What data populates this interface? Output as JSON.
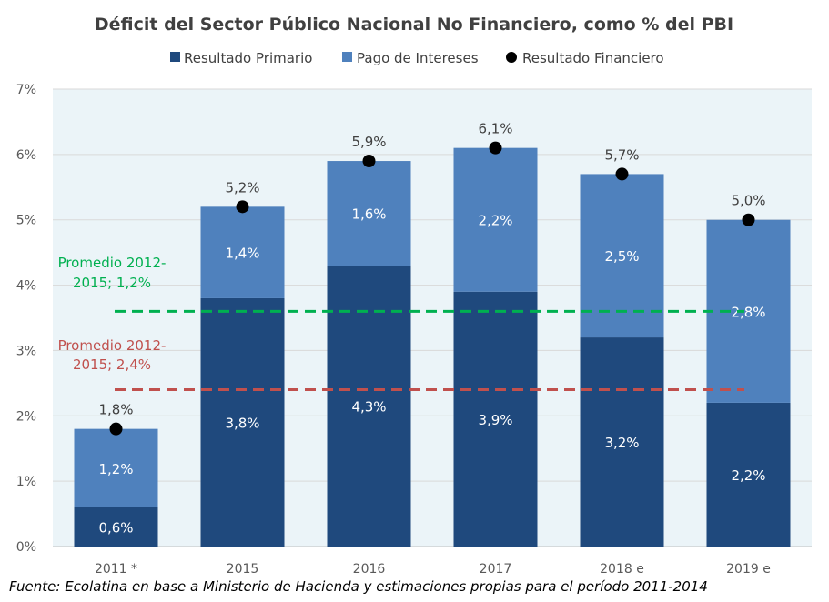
{
  "chart_data": {
    "type": "bar",
    "stacked": true,
    "title": "Déficit del Sector Público Nacional No Financiero, como % del PBI",
    "categories": [
      "2011 *",
      "2015",
      "2016",
      "2017",
      "2018 e",
      "2019 e"
    ],
    "series": [
      {
        "name": "Resultado Primario",
        "color": "#1f497d",
        "values": [
          0.6,
          3.8,
          4.3,
          3.9,
          3.2,
          2.2
        ],
        "labels": [
          "0,6%",
          "3,8%",
          "4,3%",
          "3,9%",
          "3,2%",
          "2,2%"
        ]
      },
      {
        "name": "Pago de Intereses",
        "color": "#4f81bd",
        "values": [
          1.2,
          1.4,
          1.6,
          2.2,
          2.5,
          2.8
        ],
        "labels": [
          "1,2%",
          "1,4%",
          "1,6%",
          "2,2%",
          "2,5%",
          "2,8%"
        ]
      }
    ],
    "markers": {
      "name": "Resultado Financiero",
      "color": "#000000",
      "values": [
        1.8,
        5.2,
        5.9,
        6.1,
        5.7,
        5.0
      ],
      "labels": [
        "1,8%",
        "5,2%",
        "5,9%",
        "6,1%",
        "5,7%",
        "5,0%"
      ]
    },
    "reference_lines": [
      {
        "label_line1": "Promedio 2012-",
        "label_line2": "2015; 1,2%",
        "value": 3.6,
        "color": "#00b050",
        "style": "dashed"
      },
      {
        "label_line1": "Promedio 2012-",
        "label_line2": "2015; 2,4%",
        "value": 2.4,
        "color": "#c0504d",
        "style": "dashed"
      }
    ],
    "ylim": [
      0,
      7
    ],
    "yticks": [
      0,
      1,
      2,
      3,
      4,
      5,
      6,
      7
    ],
    "ytick_labels": [
      "0%",
      "1%",
      "2%",
      "3%",
      "4%",
      "5%",
      "6%",
      "7%"
    ],
    "grid": true,
    "legend_position": "top",
    "plot_background": "#ebf4f8",
    "xlabel": "",
    "ylabel": ""
  },
  "source": "Fuente: Ecolatina en base a Ministerio de Hacienda y estimaciones propias para el período 2011-2014"
}
